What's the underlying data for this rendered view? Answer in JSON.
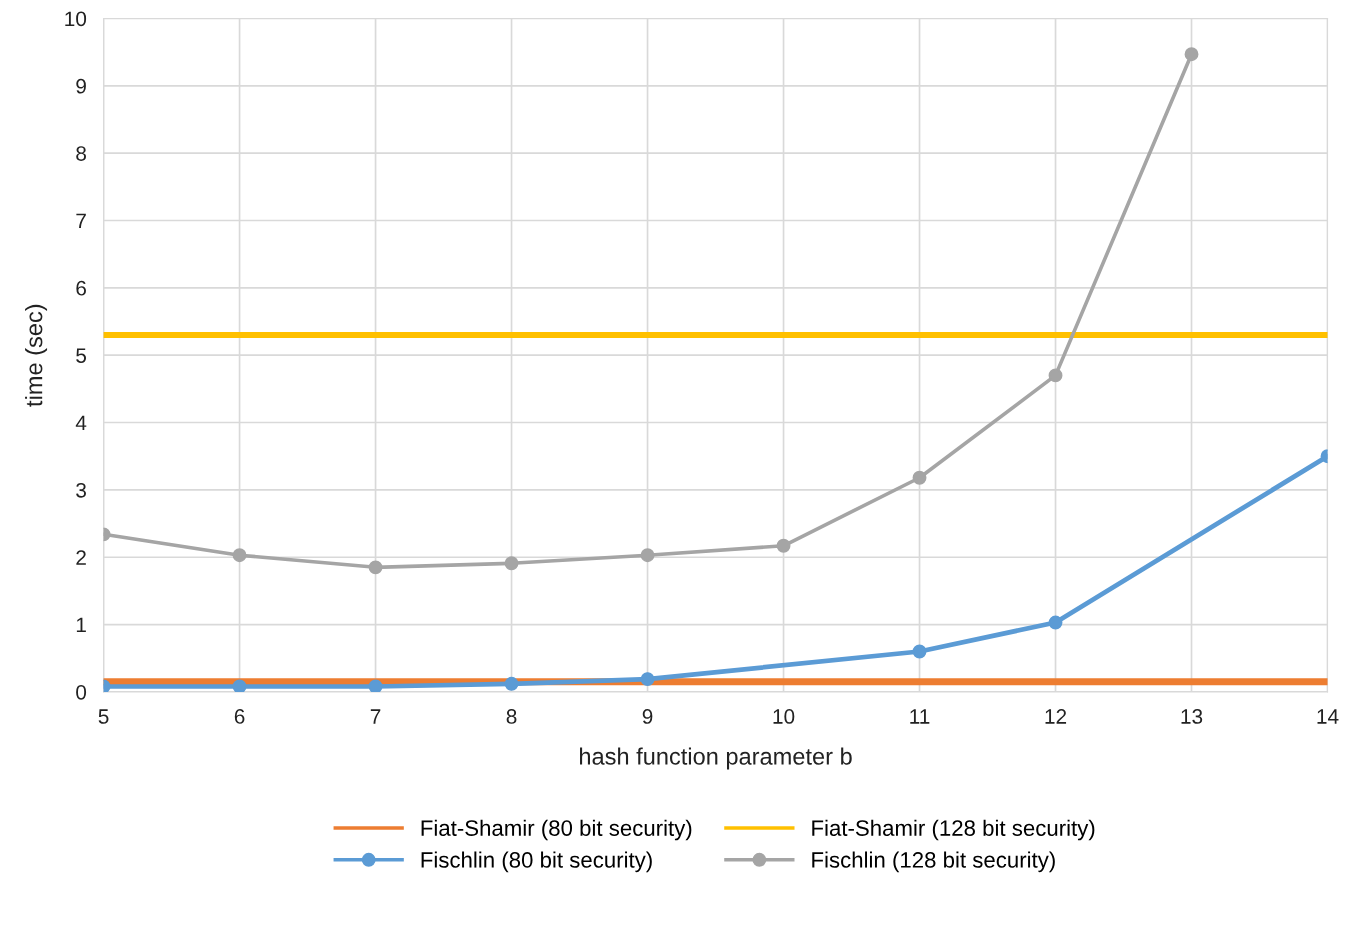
{
  "chart_data": {
    "type": "line",
    "xlabel": "hash function parameter b",
    "ylabel": "time (sec)",
    "x": [
      5,
      6,
      7,
      8,
      9,
      10,
      11,
      12,
      13,
      14
    ],
    "xlim": [
      5,
      14
    ],
    "xticks": [
      5,
      6,
      7,
      8,
      9,
      10,
      11,
      12,
      13,
      14
    ],
    "ylim": [
      0,
      10
    ],
    "yticks": [
      0,
      1,
      2,
      3,
      4,
      5,
      6,
      7,
      8,
      9,
      10
    ],
    "grid": true,
    "legend": "bottom",
    "series": [
      {
        "name": "Fiat-Shamir (80 bit security)",
        "color": "#ed7d31",
        "marker": "none",
        "values": [
          0.15,
          0.15,
          0.15,
          0.15,
          0.15,
          0.15,
          0.15,
          0.15,
          0.15,
          0.15
        ]
      },
      {
        "name": "Fiat-Shamir (128 bit security)",
        "color": "#ffc000",
        "marker": "none",
        "values": [
          5.3,
          5.3,
          5.3,
          5.3,
          5.3,
          5.3,
          5.3,
          5.3,
          5.3,
          5.3
        ]
      },
      {
        "name": "Fischlin (80 bit security)",
        "color": "#5b9bd5",
        "marker": "circle",
        "values": [
          0.08,
          0.08,
          0.08,
          0.12,
          0.19,
          null,
          0.6,
          1.03,
          null,
          3.5
        ]
      },
      {
        "name": "Fischlin (128 bit security)",
        "color": "#a5a5a5",
        "marker": "circle",
        "values": [
          2.34,
          2.03,
          1.85,
          1.91,
          2.03,
          2.17,
          3.18,
          4.7,
          9.47,
          null
        ]
      }
    ]
  }
}
